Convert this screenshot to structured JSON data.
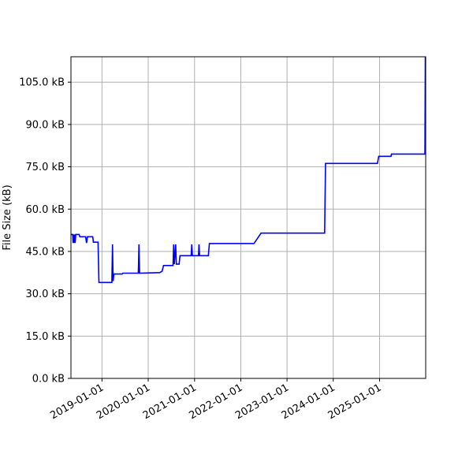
{
  "chart_data": {
    "type": "line",
    "title": "",
    "xlabel": "",
    "ylabel": "File Size (kB)",
    "grid": true,
    "legend": "none",
    "x_axis": "date",
    "xlim": [
      "2018-05-01",
      "2025-12-31"
    ],
    "ylim": [
      0,
      114
    ],
    "x_ticks": [
      {
        "date": "2019-01-01",
        "label": "2019-01-01"
      },
      {
        "date": "2020-01-01",
        "label": "2020-01-01"
      },
      {
        "date": "2021-01-01",
        "label": "2021-01-01"
      },
      {
        "date": "2022-01-01",
        "label": "2022-01-01"
      },
      {
        "date": "2023-01-01",
        "label": "2023-01-01"
      },
      {
        "date": "2024-01-01",
        "label": "2024-01-01"
      },
      {
        "date": "2025-01-01",
        "label": "2025-01-01"
      }
    ],
    "y_ticks": [
      {
        "value": 0,
        "label": "0.0 kB"
      },
      {
        "value": 15,
        "label": "15.0 kB"
      },
      {
        "value": 30,
        "label": "30.0 kB"
      },
      {
        "value": 45,
        "label": "45.0 kB"
      },
      {
        "value": 60,
        "label": "60.0 kB"
      },
      {
        "value": 75,
        "label": "75.0 kB"
      },
      {
        "value": 90,
        "label": "90.0 kB"
      },
      {
        "value": 105,
        "label": "105.0 kB"
      }
    ],
    "series": [
      {
        "color": "#0000ff",
        "points": [
          [
            "2018-05-01",
            51.0
          ],
          [
            "2018-05-15",
            51.0
          ],
          [
            "2018-05-18",
            48.0
          ],
          [
            "2018-05-22",
            51.0
          ],
          [
            "2018-05-26",
            48.0
          ],
          [
            "2018-05-30",
            51.0
          ],
          [
            "2018-06-03",
            48.0
          ],
          [
            "2018-06-08",
            51.0
          ],
          [
            "2018-07-05",
            51.0
          ],
          [
            "2018-07-10",
            50.2
          ],
          [
            "2018-08-25",
            50.2
          ],
          [
            "2018-09-01",
            48.0
          ],
          [
            "2018-09-08",
            50.2
          ],
          [
            "2018-10-20",
            50.2
          ],
          [
            "2018-10-25",
            48.3
          ],
          [
            "2018-12-01",
            48.3
          ],
          [
            "2018-12-08",
            34.0
          ],
          [
            "2019-03-20",
            34.0
          ],
          [
            "2019-03-25",
            47.5
          ],
          [
            "2019-03-30",
            34.5
          ],
          [
            "2019-04-05",
            37.0
          ],
          [
            "2019-06-10",
            37.0
          ],
          [
            "2019-06-15",
            37.3
          ],
          [
            "2019-10-15",
            37.3
          ],
          [
            "2019-10-20",
            47.5
          ],
          [
            "2019-10-25",
            37.3
          ],
          [
            "2020-04-01",
            37.5
          ],
          [
            "2020-04-20",
            38.0
          ],
          [
            "2020-05-01",
            40.0
          ],
          [
            "2020-07-15",
            40.0
          ],
          [
            "2020-07-20",
            47.5
          ],
          [
            "2020-07-25",
            40.5
          ],
          [
            "2020-08-05",
            47.5
          ],
          [
            "2020-08-10",
            40.5
          ],
          [
            "2020-09-01",
            40.5
          ],
          [
            "2020-09-08",
            43.5
          ],
          [
            "2020-12-05",
            43.5
          ],
          [
            "2020-12-10",
            47.5
          ],
          [
            "2020-12-15",
            43.5
          ],
          [
            "2021-02-01",
            43.5
          ],
          [
            "2021-02-05",
            47.5
          ],
          [
            "2021-02-10",
            43.5
          ],
          [
            "2021-04-20",
            43.5
          ],
          [
            "2021-04-28",
            47.8
          ],
          [
            "2022-04-15",
            47.8
          ],
          [
            "2022-06-10",
            51.5
          ],
          [
            "2023-10-25",
            51.5
          ],
          [
            "2023-11-01",
            76.2
          ],
          [
            "2024-12-15",
            76.2
          ],
          [
            "2024-12-25",
            78.7
          ],
          [
            "2025-04-01",
            78.7
          ],
          [
            "2025-04-05",
            79.5
          ],
          [
            "2025-12-25",
            79.5
          ],
          [
            "2025-12-28",
            114.0
          ]
        ]
      }
    ]
  }
}
